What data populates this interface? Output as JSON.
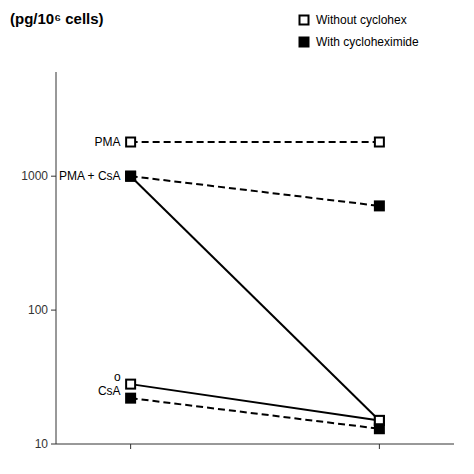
{
  "chart_data": {
    "type": "line",
    "title": "(pg/10⁶ cells)",
    "log": "y",
    "color": "#000000",
    "x": [
      0,
      1
    ],
    "xlim": [
      -0.3,
      1.3
    ],
    "xticks": [
      0,
      1
    ],
    "ylim": [
      10,
      6000
    ],
    "yticks": [
      10,
      100,
      1000
    ],
    "tick_labels": "y",
    "grid": false,
    "legend": "top-right",
    "series": [
      {
        "values": [
          1800,
          1800
        ],
        "line_style": "dashed",
        "marker": "square-open"
      },
      {
        "values": [
          1000,
          15
        ],
        "line_style": "solid",
        "marker": "square-open"
      },
      {
        "values": [
          1000,
          600
        ],
        "line_style": "dashed",
        "marker": "square-filled"
      },
      {
        "values": [
          28,
          15
        ],
        "line_style": "solid",
        "marker": "square-open"
      },
      {
        "values": [
          22,
          13
        ],
        "line_style": "dashed",
        "marker": "square-filled"
      }
    ],
    "annotations": [
      {
        "text": "PMA",
        "series": 0
      },
      {
        "text": "PMA + CsA",
        "series": 1
      },
      {
        "text": "o",
        "series": 3
      },
      {
        "text": "CsA",
        "series": 3
      }
    ],
    "legend_items": [
      {
        "label": "Without cyclohex",
        "marker": "square-open"
      },
      {
        "label": "With cycloheximide",
        "marker": "square-filled"
      }
    ]
  }
}
